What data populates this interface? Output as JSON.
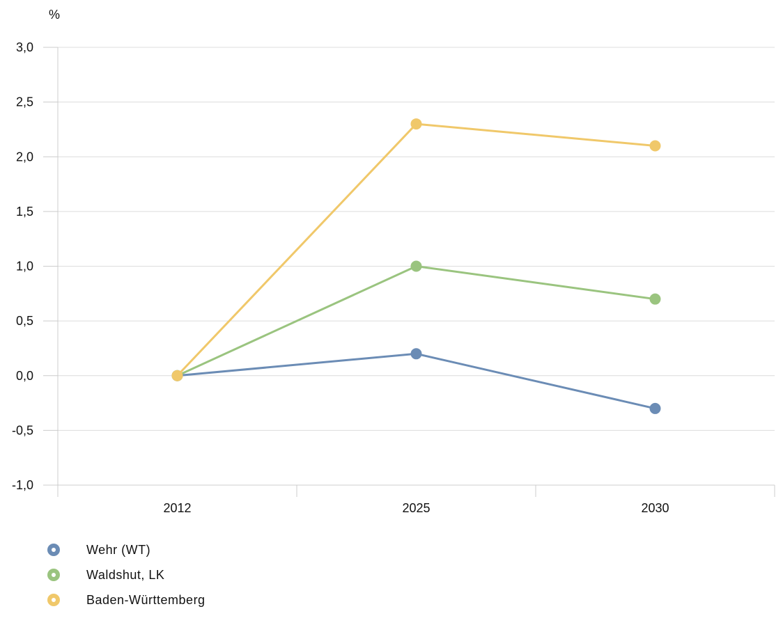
{
  "chart_data": {
    "type": "line",
    "title": "",
    "xlabel": "",
    "ylabel": "%",
    "categories": [
      "2012",
      "2025",
      "2030"
    ],
    "ylim": [
      -1.0,
      3.0
    ],
    "yticks": [
      "3,0",
      "2,5",
      "2,0",
      "1,5",
      "1,0",
      "0,5",
      "0,0",
      "-0,5",
      "-1,0"
    ],
    "ytick_values": [
      3.0,
      2.5,
      2.0,
      1.5,
      1.0,
      0.5,
      0.0,
      -0.5,
      -1.0
    ],
    "grid": true,
    "legend_position": "bottom-left",
    "series": [
      {
        "name": "Wehr (WT)",
        "values": [
          0.0,
          0.2,
          -0.3
        ],
        "color": "#6b8cb5"
      },
      {
        "name": "Waldshut, LK",
        "values": [
          0.0,
          1.0,
          0.7
        ],
        "color": "#9ac47f"
      },
      {
        "name": "Baden-Württemberg",
        "values": [
          0.0,
          2.3,
          2.1
        ],
        "color": "#f0c86a"
      }
    ]
  }
}
